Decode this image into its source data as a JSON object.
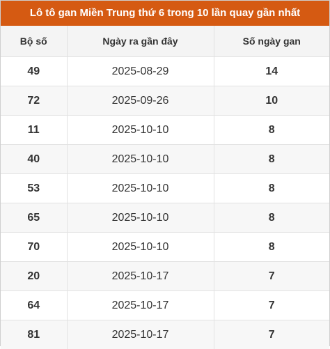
{
  "title": "Lô tô gan Miền Trung thứ 6 trong 10 lần quay gần nhất",
  "columns": [
    "Bộ số",
    "Ngày ra gần đây",
    "Số ngày gan"
  ],
  "rows": [
    {
      "number": "49",
      "date": "2025-08-29",
      "gan": "14"
    },
    {
      "number": "72",
      "date": "2025-09-26",
      "gan": "10"
    },
    {
      "number": "11",
      "date": "2025-10-10",
      "gan": "8"
    },
    {
      "number": "40",
      "date": "2025-10-10",
      "gan": "8"
    },
    {
      "number": "53",
      "date": "2025-10-10",
      "gan": "8"
    },
    {
      "number": "65",
      "date": "2025-10-10",
      "gan": "8"
    },
    {
      "number": "70",
      "date": "2025-10-10",
      "gan": "8"
    },
    {
      "number": "20",
      "date": "2025-10-17",
      "gan": "7"
    },
    {
      "number": "64",
      "date": "2025-10-17",
      "gan": "7"
    },
    {
      "number": "81",
      "date": "2025-10-17",
      "gan": "7"
    }
  ],
  "colors": {
    "accent": "#d55a12",
    "header_bg": "#f4f4f4",
    "stripe_bg": "#f7f7f7"
  }
}
